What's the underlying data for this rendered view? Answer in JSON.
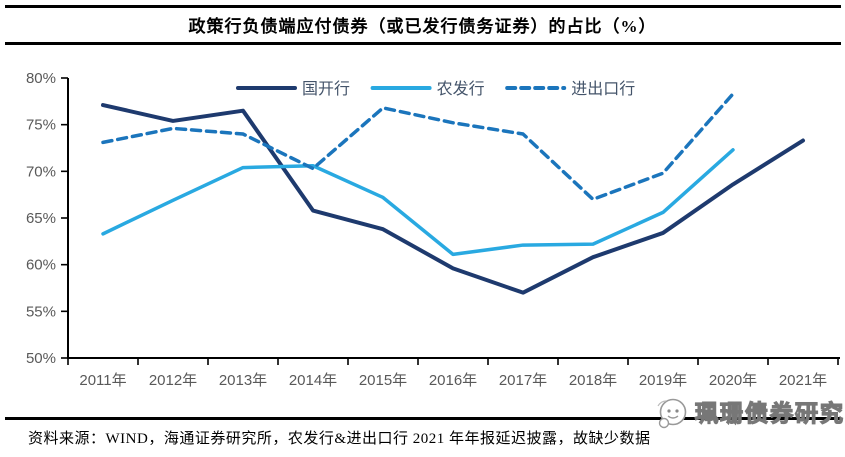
{
  "title": "政策行负债端应付债券（或已发行债务证券）的占比（%）",
  "source_note": "资料来源：WIND，海通证券研究所，农发行&进出口行 2021 年年报延迟披露，故缺少数据",
  "watermark": {
    "text": "珮珊债券研究",
    "logo": "whale-face-logo"
  },
  "colors": {
    "cdb": "#1e3a6e",
    "adbc": "#29a9e1",
    "exim": "#1b75bc",
    "axis_line": "#000000",
    "axis_label": "#595959",
    "legend_label": "#44546a",
    "rule": "#000000"
  },
  "chart_data": {
    "type": "line",
    "title": "政策行负债端应付债券（或已发行债务证券）的占比（%）",
    "x": [
      "2011年",
      "2012年",
      "2013年",
      "2014年",
      "2015年",
      "2016年",
      "2017年",
      "2018年",
      "2019年",
      "2020年",
      "2021年"
    ],
    "series": [
      {
        "name": "国开行",
        "style": "solid",
        "color_key": "cdb",
        "values": [
          77.1,
          75.4,
          76.5,
          65.8,
          63.8,
          59.6,
          57.0,
          60.8,
          63.4,
          68.6,
          73.3
        ]
      },
      {
        "name": "农发行",
        "style": "solid",
        "color_key": "adbc",
        "values": [
          63.3,
          66.9,
          70.4,
          70.6,
          67.2,
          61.1,
          62.1,
          62.2,
          65.6,
          72.3,
          null
        ]
      },
      {
        "name": "进出口行",
        "style": "dashed",
        "color_key": "exim",
        "values": [
          73.1,
          74.6,
          74.0,
          70.3,
          76.8,
          75.2,
          74.0,
          67.0,
          69.8,
          78.3,
          null
        ]
      }
    ],
    "ylim": [
      50,
      80
    ],
    "ytick_step": 5,
    "ytick_format": "percent",
    "legend_position": "top-center",
    "grid": false
  }
}
